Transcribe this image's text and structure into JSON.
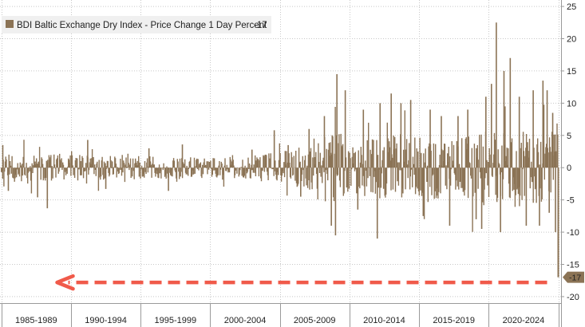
{
  "chart_data": {
    "type": "bar",
    "title": "",
    "xlabel": "",
    "ylabel": "",
    "legend": {
      "label": "BDI Baltic Exchange Dry Index - Price Change 1 Day Percent",
      "last_value": "-17",
      "placement": "top-left"
    },
    "series": [
      {
        "name": "BDI Baltic Exchange Dry Index - Price Change 1 Day Percent",
        "color": "#8B7355",
        "last_value": -17
      }
    ],
    "x_period_labels": [
      "1985-1989",
      "1990-1994",
      "1995-1999",
      "2000-2004",
      "2005-2009",
      "2010-2014",
      "2015-2019",
      "2020-2024"
    ],
    "x_period_starts": [
      1985,
      1990,
      1995,
      2000,
      2005,
      2010,
      2015,
      2020,
      2025
    ],
    "x_range": [
      1984.9,
      2025.2
    ],
    "ylim": [
      -21,
      26
    ],
    "y_ticks": [
      25,
      20,
      15,
      10,
      5,
      0,
      -5,
      -10,
      -15,
      -20
    ],
    "y_tick_labels": [
      "25",
      "20",
      "15",
      "10",
      "5",
      "0",
      "-5",
      "-10",
      "-15",
      "-20"
    ],
    "grid": true,
    "y_axis_side": "right",
    "volatility_envelope": [
      [
        1985.0,
        2.5
      ],
      [
        1987.0,
        2.4
      ],
      [
        1990.0,
        2.4
      ],
      [
        1993.0,
        2.0
      ],
      [
        1995.0,
        2.0
      ],
      [
        1998.0,
        2.0
      ],
      [
        2000.0,
        1.7
      ],
      [
        2003.0,
        2.0
      ],
      [
        2004.0,
        2.5
      ],
      [
        2005.0,
        3.0
      ],
      [
        2006.0,
        3.4
      ],
      [
        2007.0,
        4.4
      ],
      [
        2008.0,
        5.8
      ],
      [
        2009.0,
        6.5
      ],
      [
        2010.0,
        5.0
      ],
      [
        2012.0,
        5.6
      ],
      [
        2014.0,
        5.8
      ],
      [
        2016.0,
        5.6
      ],
      [
        2018.0,
        5.5
      ],
      [
        2019.5,
        6.0
      ],
      [
        2020.5,
        7.0
      ],
      [
        2022.0,
        6.8
      ],
      [
        2023.0,
        6.5
      ],
      [
        2024.0,
        6.2
      ],
      [
        2025.0,
        6.2
      ]
    ],
    "notable_points": [
      [
        1985.1,
        3.5
      ],
      [
        1985.5,
        -3.6
      ],
      [
        1987.6,
        -4.6
      ],
      [
        1988.3,
        -6.3
      ],
      [
        1991.2,
        4.3
      ],
      [
        1992.5,
        -3.3
      ],
      [
        1995.6,
        3.0
      ],
      [
        1997.0,
        -3.6
      ],
      [
        1998.0,
        3.6
      ],
      [
        2003.0,
        2.8
      ],
      [
        2004.6,
        5.8
      ],
      [
        2005.6,
        3.5
      ],
      [
        2006.5,
        -4.5
      ],
      [
        2007.1,
        6.0
      ],
      [
        2008.2,
        8.0
      ],
      [
        2008.7,
        -9.0
      ],
      [
        2009.1,
        14.5
      ],
      [
        2009.0,
        -10.5
      ],
      [
        2009.7,
        12.0
      ],
      [
        2010.6,
        -6.5
      ],
      [
        2011.0,
        9.0
      ],
      [
        2012.0,
        -11.0
      ],
      [
        2012.2,
        10.0
      ],
      [
        2013.0,
        11.5
      ],
      [
        2013.7,
        10.0
      ],
      [
        2014.4,
        10.5
      ],
      [
        2015.3,
        -7.5
      ],
      [
        2015.8,
        9.0
      ],
      [
        2016.6,
        8.0
      ],
      [
        2017.2,
        -9.0
      ],
      [
        2017.8,
        8.0
      ],
      [
        2018.5,
        9.0
      ],
      [
        2019.1,
        -8.0
      ],
      [
        2019.5,
        -9.5
      ],
      [
        2019.8,
        11.0
      ],
      [
        2020.2,
        13.0
      ],
      [
        2020.55,
        22.5
      ],
      [
        2020.85,
        -10.0
      ],
      [
        2021.1,
        15.0
      ],
      [
        2021.55,
        17.0
      ],
      [
        2022.2,
        11.0
      ],
      [
        2022.7,
        -9.0
      ],
      [
        2023.2,
        12.0
      ],
      [
        2023.65,
        -9.0
      ],
      [
        2023.9,
        13.5
      ],
      [
        2024.2,
        12.0
      ],
      [
        2024.35,
        -7.0
      ],
      [
        2024.6,
        8.5
      ],
      [
        2024.8,
        -10.0
      ]
    ],
    "last_point": [
      2025.0,
      -17
    ],
    "annotation_arrow": {
      "y": -17.8,
      "x_from": 2025.0,
      "x_to": 1989.0,
      "color": "#F05A4A"
    },
    "colors": {
      "bars": "#8B7355",
      "grid": "#C8C8C8",
      "axis_line": "#9A9A9A",
      "text": "#222222",
      "legend_bg": "#F0F0F0",
      "value_tag_bg": "#8B7355",
      "annotation": "#F05A4A"
    }
  }
}
